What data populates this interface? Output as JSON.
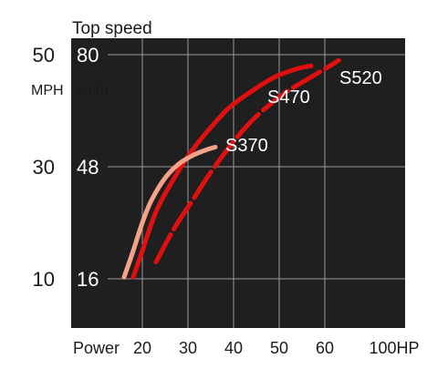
{
  "chart_data": {
    "type": "line",
    "title": "Top speed",
    "x_axis": {
      "label": "Power",
      "unit": "HP",
      "range": [
        10,
        110
      ],
      "ticks": [
        20,
        30,
        40,
        50,
        60,
        100
      ],
      "tick_labels": [
        "20",
        "30",
        "40",
        "50",
        "60",
        "100HP"
      ]
    },
    "y_axis": {
      "units": [
        "MPH",
        "km/h"
      ],
      "range_mph": [
        5,
        55
      ],
      "ticks": [
        {
          "mph": "10",
          "kmh": "16"
        },
        {
          "mph": "30",
          "kmh": "48"
        },
        {
          "mph": "50",
          "kmh": "80"
        }
      ]
    },
    "grid": true,
    "colors": {
      "background": "#1f1f1f",
      "grid": "#9a9a9a",
      "S370": "#f4a38a",
      "S470": "#e01010",
      "S520": "#e01010"
    },
    "series": [
      {
        "name": "S370",
        "x": [
          16,
          18,
          20,
          22,
          25,
          28,
          31,
          34,
          36
        ],
        "y": [
          10.3,
          15,
          20,
          24,
          28,
          30.5,
          32,
          33,
          33.5
        ]
      },
      {
        "name": "S470",
        "x": [
          18,
          20,
          23,
          27,
          31,
          35,
          39,
          44,
          49,
          54,
          57
        ],
        "y": [
          10.3,
          15,
          22,
          28,
          33,
          37,
          40.5,
          43.5,
          46,
          47.5,
          48
        ]
      },
      {
        "name": "S520",
        "x": [
          23,
          27,
          31,
          35,
          40,
          45,
          51,
          57,
          63,
          68
        ],
        "y": [
          13,
          19,
          24,
          29,
          34.5,
          39,
          43,
          46,
          48,
          49
        ]
      }
    ]
  }
}
